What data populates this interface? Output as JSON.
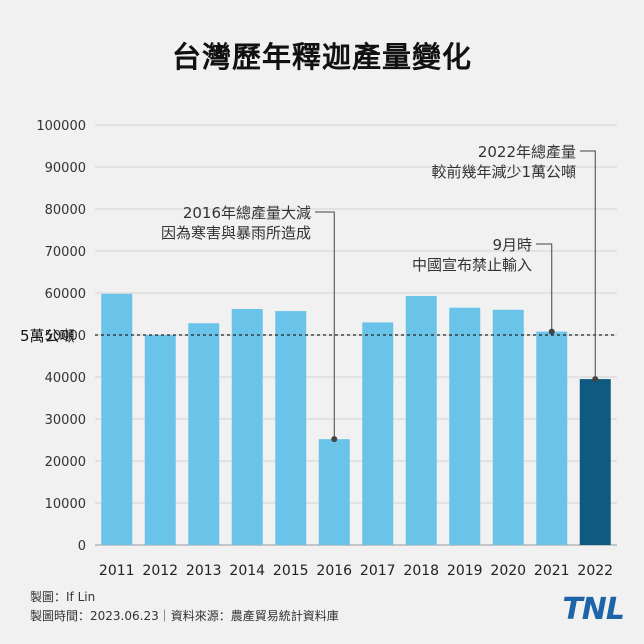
{
  "title": "台灣歷年釋迦產量變化",
  "chart_data": {
    "type": "bar",
    "categories": [
      "2011",
      "2012",
      "2013",
      "2014",
      "2015",
      "2016",
      "2017",
      "2018",
      "2019",
      "2020",
      "2021",
      "2022"
    ],
    "values": [
      59800,
      50000,
      52800,
      56200,
      55700,
      25200,
      53000,
      59300,
      56500,
      56000,
      50800,
      39500
    ],
    "ylim": [
      0,
      100000
    ],
    "yticks": [
      0,
      10000,
      20000,
      30000,
      40000,
      50000,
      60000,
      70000,
      80000,
      90000,
      100000
    ],
    "grid": true,
    "colors": {
      "bar": "#6ac4e9",
      "highlight": "#0e5a80"
    },
    "highlight_index": 11,
    "reference_line": {
      "value": 50000,
      "label": "5萬公噸"
    },
    "annotations": [
      {
        "category": "2016",
        "value": 25200,
        "lines": [
          "2016年總產量大減",
          "因為寒害與暴雨所造成"
        ]
      },
      {
        "category": "2021",
        "value": 50800,
        "lines": [
          "9月時",
          "中國宣布禁止輸入"
        ]
      },
      {
        "category": "2022",
        "value": 39500,
        "lines": [
          "2022年總產量",
          "較前幾年減少1萬公噸"
        ]
      }
    ]
  },
  "credits": {
    "maker": "製圖：If Lin",
    "date_source": "製圖時間：2023.06.23｜資料來源：農產貿易統計資料庫"
  },
  "logo": "TNL"
}
